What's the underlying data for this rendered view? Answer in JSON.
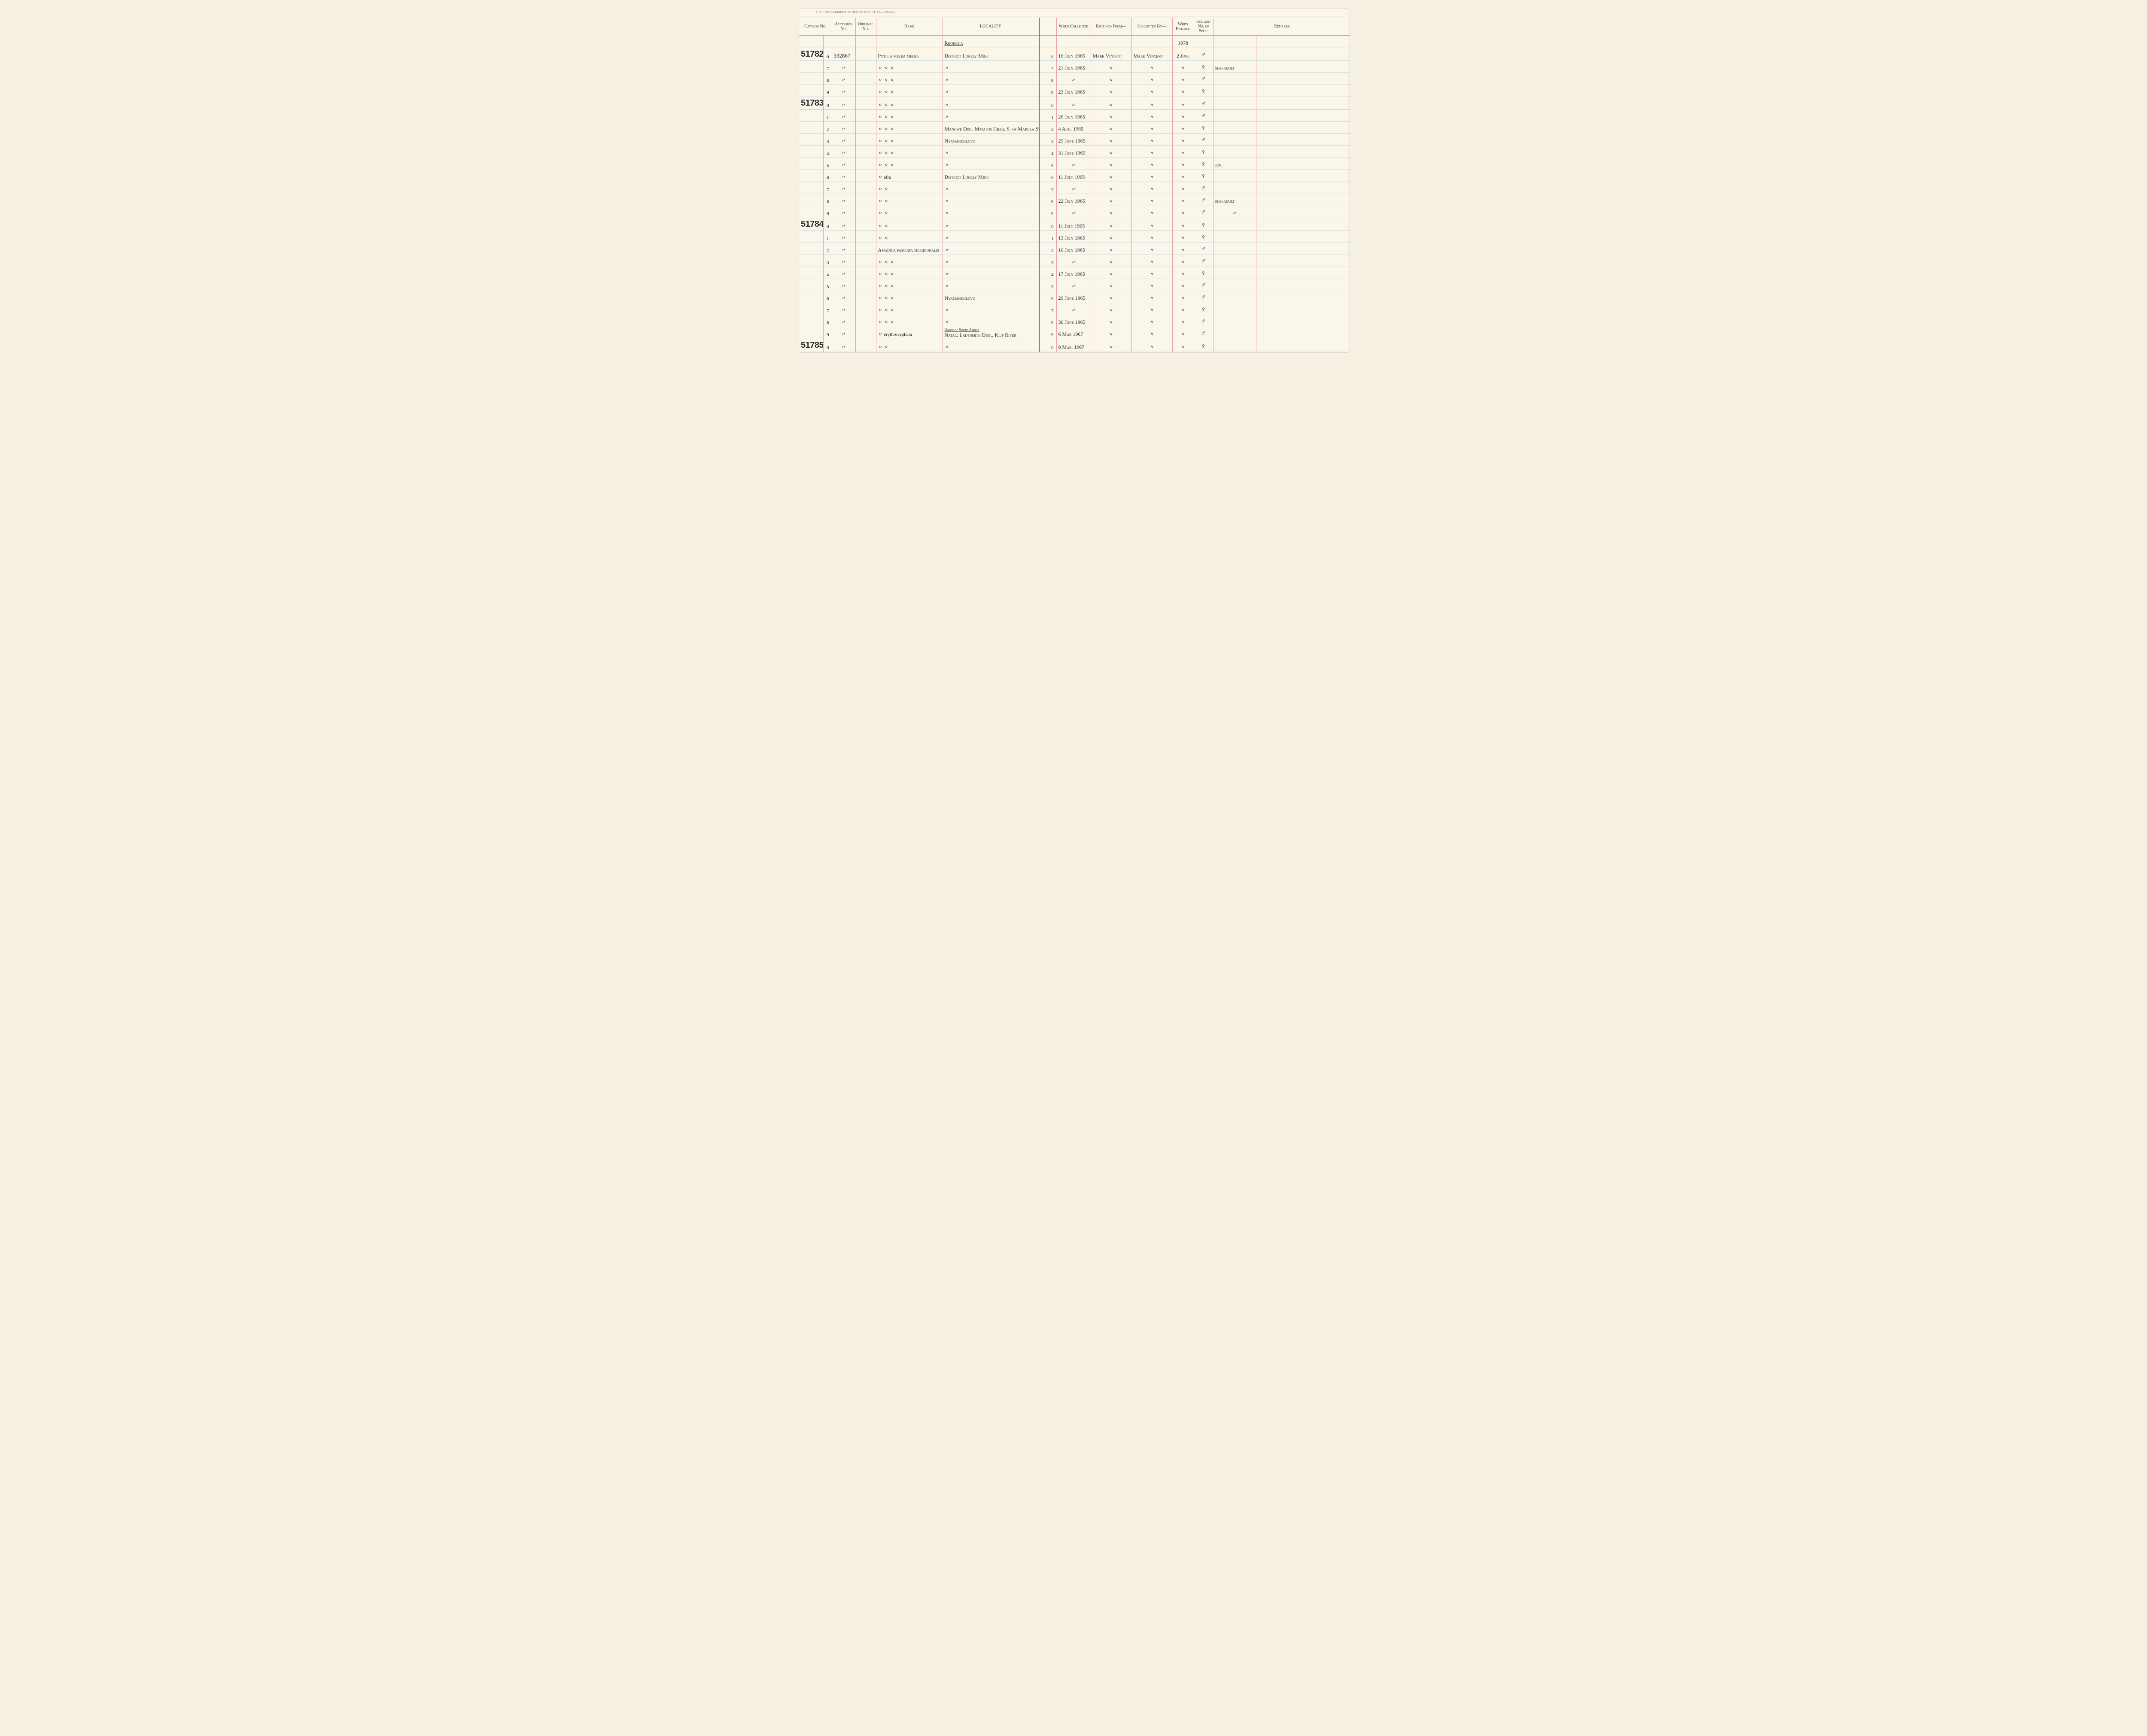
{
  "page_header": "U.S. GOVERNMENT PRINTING OFFICE  16—22024-2",
  "columns": {
    "catalog": "Catalog No.",
    "accession": "Accession No.",
    "original": "Original No.",
    "name": "Name",
    "locality": "LOCALITY",
    "when_collected": "When Collected",
    "received_from": "Received From—",
    "collected_by": "Collected By—",
    "when_entered": "When Entered",
    "sex_spec": "Sex and No. of Spec.",
    "remarks": "Remarks"
  },
  "locality_headers": {
    "rhodesia": "Rhodesia",
    "south_africa": "Union of South Africa"
  },
  "year_header": "1978",
  "ditto": "〃",
  "rows": [
    {
      "cat_main": "51782",
      "cat_sub": "6",
      "accession": "332867",
      "name": "Pytilia melba melba",
      "locality": "District Lonely Mine",
      "cat_sub_r": "6",
      "when_col": "16 July 1965",
      "rec_from": "Mark Vincent",
      "col_by": "Mark Vincent",
      "entered": "2 June",
      "sex": "♂",
      "remarks": ""
    },
    {
      "cat_main": "",
      "cat_sub": "7",
      "accession": "〃",
      "name": "〃   〃   〃",
      "locality": "〃",
      "cat_sub_r": "7",
      "when_col": "21 July 1965",
      "rec_from": "〃",
      "col_by": "〃",
      "entered": "〃",
      "sex": "♀",
      "remarks": "sub-adult"
    },
    {
      "cat_main": "",
      "cat_sub": "8",
      "accession": "〃",
      "name": "〃   〃   〃",
      "locality": "〃",
      "cat_sub_r": "8",
      "when_col": "〃",
      "rec_from": "〃",
      "col_by": "〃",
      "entered": "〃",
      "sex": "♂",
      "remarks": ""
    },
    {
      "cat_main": "",
      "cat_sub": "9",
      "accession": "〃",
      "name": "〃   〃   〃",
      "locality": "〃",
      "cat_sub_r": "9",
      "when_col": "23 July 1965",
      "rec_from": "〃",
      "col_by": "〃",
      "entered": "〃",
      "sex": "♀",
      "remarks": ""
    },
    {
      "cat_main": "51783",
      "cat_sub": "0",
      "accession": "〃",
      "name": "〃   〃   〃",
      "locality": "〃",
      "cat_sub_r": "0",
      "when_col": "〃",
      "rec_from": "〃",
      "col_by": "〃",
      "entered": "〃",
      "sex": "♂",
      "remarks": ""
    },
    {
      "cat_main": "",
      "cat_sub": "1",
      "accession": "〃",
      "name": "〃   〃   〃",
      "locality": "〃",
      "cat_sub_r": "1",
      "when_col": "26 July 1965",
      "rec_from": "〃",
      "col_by": "〃",
      "entered": "〃",
      "sex": "♂",
      "remarks": ""
    },
    {
      "cat_main": "",
      "cat_sub": "2",
      "accession": "〃",
      "name": "〃   〃   〃",
      "locality": "Mangwe Dist. Matapos Hills, S. of Marula Sta.",
      "cat_sub_r": "2",
      "when_col": "4 Aug. 1965",
      "rec_from": "〃",
      "col_by": "〃",
      "entered": "〃",
      "sex": "♀",
      "remarks": ""
    },
    {
      "cat_main": "",
      "cat_sub": "3",
      "accession": "〃",
      "name": "〃   〃   〃",
      "locality": "Nyamandhlovo",
      "cat_sub_r": "3",
      "when_col": "29 June 1965",
      "rec_from": "〃",
      "col_by": "〃",
      "entered": "〃",
      "sex": "♂",
      "remarks": ""
    },
    {
      "cat_main": "",
      "cat_sub": "4",
      "accession": "〃",
      "name": "〃   〃   〃",
      "locality": "〃",
      "cat_sub_r": "4",
      "when_col": "31 June 1965",
      "rec_from": "〃",
      "col_by": "〃",
      "entered": "〃",
      "sex": "♀",
      "remarks": ""
    },
    {
      "cat_main": "",
      "cat_sub": "5",
      "accession": "〃",
      "name": "〃   〃   〃",
      "locality": "〃",
      "cat_sub_r": "5",
      "when_col": "〃",
      "rec_from": "〃",
      "col_by": "〃",
      "entered": "〃",
      "sex": "♀",
      "remarks": "juv."
    },
    {
      "cat_main": "",
      "cat_sub": "6",
      "accession": "〃",
      "name": "〃   afra",
      "locality": "District Lonely Mine",
      "cat_sub_r": "6",
      "when_col": "11 July 1965",
      "rec_from": "〃",
      "col_by": "〃",
      "entered": "〃",
      "sex": "♀",
      "remarks": ""
    },
    {
      "cat_main": "",
      "cat_sub": "7",
      "accession": "〃",
      "name": "〃   〃",
      "locality": "〃",
      "cat_sub_r": "7",
      "when_col": "〃",
      "rec_from": "〃",
      "col_by": "〃",
      "entered": "〃",
      "sex": "♂",
      "remarks": ""
    },
    {
      "cat_main": "",
      "cat_sub": "8",
      "accession": "〃",
      "name": "〃   〃",
      "locality": "〃",
      "cat_sub_r": "8",
      "when_col": "22 July 1965",
      "rec_from": "〃",
      "col_by": "〃",
      "entered": "〃",
      "sex": "♂",
      "remarks": "sub-adult"
    },
    {
      "cat_main": "",
      "cat_sub": "9",
      "accession": "〃",
      "name": "〃   〃",
      "locality": "〃",
      "cat_sub_r": "9",
      "when_col": "〃",
      "rec_from": "〃",
      "col_by": "〃",
      "entered": "〃",
      "sex": "♂",
      "remarks": "〃"
    },
    {
      "cat_main": "51784",
      "cat_sub": "0",
      "accession": "〃",
      "name": "〃   〃",
      "locality": "〃",
      "cat_sub_r": "0",
      "when_col": "11 July 1965",
      "rec_from": "〃",
      "col_by": "〃",
      "entered": "〃",
      "sex": "♀",
      "remarks": ""
    },
    {
      "cat_main": "",
      "cat_sub": "1",
      "accession": "〃",
      "name": "〃   〃",
      "locality": "〃",
      "cat_sub_r": "1",
      "when_col": "13 July 1965",
      "rec_from": "〃",
      "col_by": "〃",
      "entered": "〃",
      "sex": "♀",
      "remarks": ""
    },
    {
      "cat_main": "",
      "cat_sub": "2",
      "accession": "〃",
      "name": "Amadina fasciata meridionalis",
      "locality": "〃",
      "cat_sub_r": "2",
      "when_col": "10 July 1965",
      "rec_from": "〃",
      "col_by": "〃",
      "entered": "〃",
      "sex": "♂",
      "remarks": ""
    },
    {
      "cat_main": "",
      "cat_sub": "3",
      "accession": "〃",
      "name": "〃   〃   〃",
      "locality": "〃",
      "cat_sub_r": "3",
      "when_col": "〃",
      "rec_from": "〃",
      "col_by": "〃",
      "entered": "〃",
      "sex": "♂",
      "remarks": ""
    },
    {
      "cat_main": "",
      "cat_sub": "4",
      "accession": "〃",
      "name": "〃   〃   〃",
      "locality": "〃",
      "cat_sub_r": "4",
      "when_col": "17 July 1965",
      "rec_from": "〃",
      "col_by": "〃",
      "entered": "〃",
      "sex": "♀",
      "remarks": ""
    },
    {
      "cat_main": "",
      "cat_sub": "5",
      "accession": "〃",
      "name": "〃   〃   〃",
      "locality": "〃",
      "cat_sub_r": "5",
      "when_col": "〃",
      "rec_from": "〃",
      "col_by": "〃",
      "entered": "〃",
      "sex": "♂",
      "remarks": ""
    },
    {
      "cat_main": "",
      "cat_sub": "6",
      "accession": "〃",
      "name": "〃   〃   〃",
      "locality": "Nyamandhlovo",
      "cat_sub_r": "6",
      "when_col": "29 June 1965",
      "rec_from": "〃",
      "col_by": "〃",
      "entered": "〃",
      "sex": "♂",
      "remarks": ""
    },
    {
      "cat_main": "",
      "cat_sub": "7",
      "accession": "〃",
      "name": "〃   〃   〃",
      "locality": "〃",
      "cat_sub_r": "7",
      "when_col": "〃",
      "rec_from": "〃",
      "col_by": "〃",
      "entered": "〃",
      "sex": "♀",
      "remarks": ""
    },
    {
      "cat_main": "",
      "cat_sub": "8",
      "accession": "〃",
      "name": "〃   〃   〃",
      "locality": "〃",
      "cat_sub_r": "8",
      "when_col": "30 June 1965",
      "rec_from": "〃",
      "col_by": "〃",
      "entered": "〃",
      "sex": "♂",
      "remarks": ""
    },
    {
      "cat_main": "",
      "cat_sub": "9",
      "accession": "〃",
      "name": "〃   erythrocephala",
      "locality": "Natal: Ladysmith Dist., Klip River",
      "cat_sub_r": "9",
      "when_col": "6 Mar 1967",
      "rec_from": "〃",
      "col_by": "〃",
      "entered": "〃",
      "sex": "♂",
      "remarks": "",
      "loc_header": "Union of South Africa"
    },
    {
      "cat_main": "51785",
      "cat_sub": "0",
      "accession": "〃",
      "name": "〃   〃",
      "locality": "〃",
      "cat_sub_r": "0",
      "when_col": "8 Mar. 1967",
      "rec_from": "〃",
      "col_by": "〃",
      "entered": "〃",
      "sex": "♀",
      "remarks": ""
    }
  ],
  "colors": {
    "paper": "#faf6ea",
    "rule_red": "#e8a0a0",
    "rule_blue": "#a8c8d8",
    "header_purple": "#b08090",
    "ink": "#2a2a2a"
  }
}
